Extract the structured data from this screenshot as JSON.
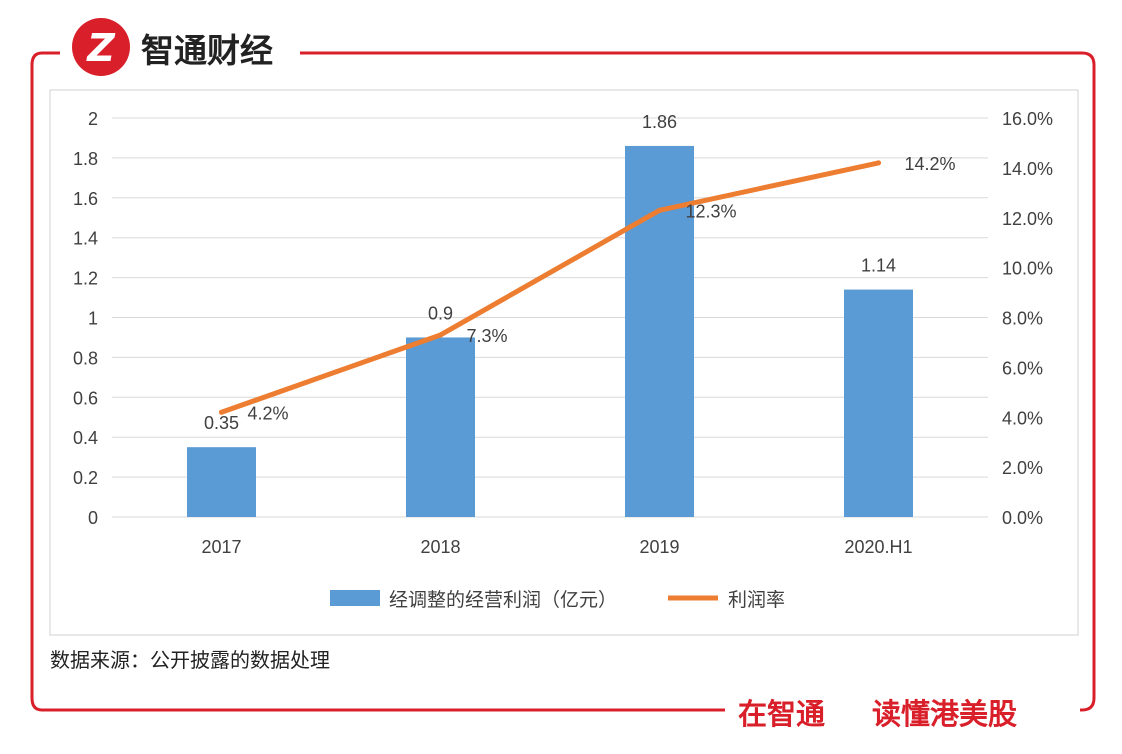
{
  "brand": {
    "logo_letter": "Z",
    "name": "智通财经",
    "slogan_left": "在智通",
    "slogan_right": "读懂港美股",
    "red": "#d9202a"
  },
  "source_note": "数据来源：公开披露的数据处理",
  "chart_data": {
    "type": "bar",
    "categories": [
      "2017",
      "2018",
      "2019",
      "2020.H1"
    ],
    "series": [
      {
        "name": "经调整的经营利润（亿元）",
        "kind": "bar",
        "axis": "left",
        "color": "#5b9bd5",
        "values": [
          0.35,
          0.9,
          1.86,
          1.14
        ],
        "labels": [
          "0.35",
          "0.9",
          "1.86",
          "1.14"
        ]
      },
      {
        "name": "利润率",
        "kind": "line",
        "axis": "right",
        "color": "#ed7d31",
        "values": [
          4.2,
          7.3,
          12.3,
          14.2
        ],
        "labels": [
          "4.2%",
          "7.3%",
          "12.3%",
          "14.2%"
        ]
      }
    ],
    "y_left": {
      "min": 0,
      "max": 2,
      "ticks": [
        "0",
        "0.2",
        "0.4",
        "0.6",
        "0.8",
        "1",
        "1.2",
        "1.4",
        "1.6",
        "1.8",
        "2"
      ]
    },
    "y_right": {
      "min": 0,
      "max": 16,
      "ticks": [
        "0.0%",
        "2.0%",
        "4.0%",
        "6.0%",
        "8.0%",
        "10.0%",
        "12.0%",
        "14.0%",
        "16.0%"
      ]
    },
    "grid": true,
    "legend_position": "bottom-center"
  }
}
